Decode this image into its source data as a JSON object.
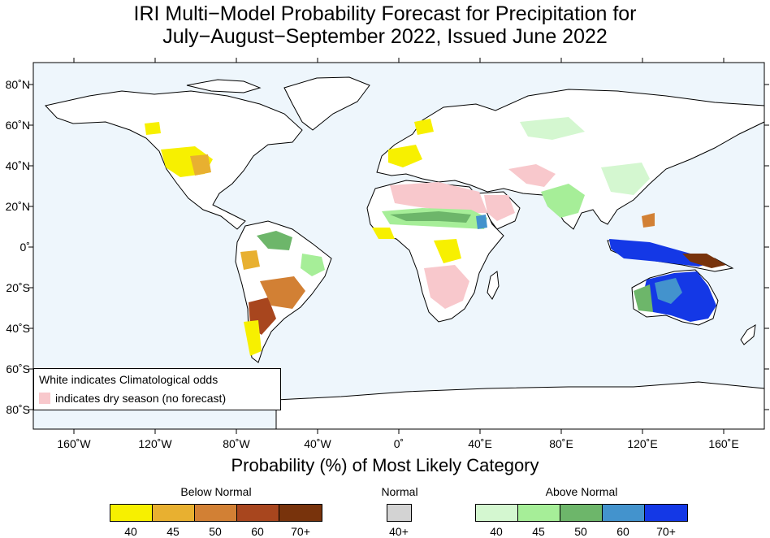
{
  "title": {
    "line1": "IRI Multi−Model Probability Forecast for Precipitation for",
    "line2": "July−August−September 2022, Issued June 2022"
  },
  "map": {
    "ocean_color": "#eef6fc",
    "land_color": "#ffffff",
    "dry_season_color": "#f8c8cc",
    "lon_labels": [
      "160˚W",
      "120˚W",
      "80˚W",
      "40˚W",
      "0˚",
      "40˚E",
      "80˚E",
      "120˚E",
      "160˚E"
    ],
    "lat_labels": [
      "80˚N",
      "60˚N",
      "40˚N",
      "20˚N",
      "0˚",
      "20˚S",
      "40˚S",
      "60˚S",
      "80˚S"
    ],
    "legend": {
      "line1": "White indicates Climatological odds",
      "line2": "indicates dry season (no forecast)"
    }
  },
  "colorbar": {
    "title": "Probability (%) of Most Likely Category",
    "below": {
      "label": "Below Normal",
      "colors": [
        "#f7f000",
        "#e8b030",
        "#d28034",
        "#a8461e",
        "#78330c"
      ],
      "ticks": [
        "40",
        "45",
        "50",
        "60",
        "70+"
      ]
    },
    "normal": {
      "label": "Normal",
      "colors": [
        "#d3d3d3"
      ],
      "ticks": [
        "40+"
      ]
    },
    "above": {
      "label": "Above Normal",
      "colors": [
        "#d4f7d0",
        "#a6ee98",
        "#6db66a",
        "#4393cd",
        "#1438e6"
      ],
      "ticks": [
        "40",
        "45",
        "50",
        "60",
        "70+"
      ]
    }
  }
}
